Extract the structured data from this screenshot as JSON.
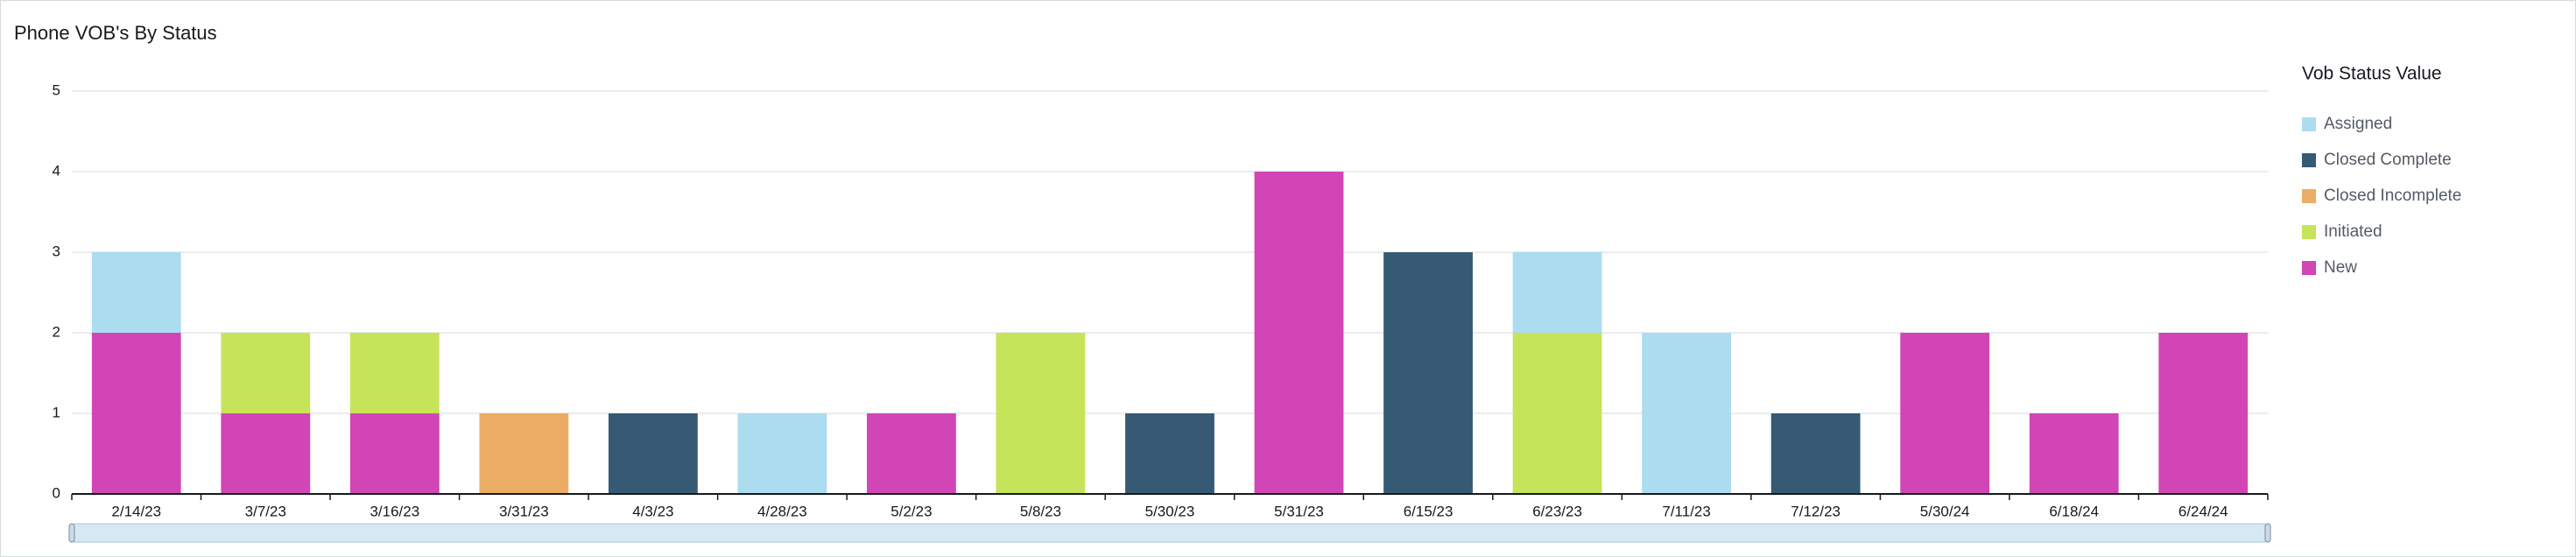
{
  "chart_data": {
    "type": "stacked_bar",
    "title": "Phone VOB's By Status",
    "legend_title": "Vob Status Value",
    "categories": [
      "2/14/23",
      "3/7/23",
      "3/16/23",
      "3/31/23",
      "4/3/23",
      "4/28/23",
      "5/2/23",
      "5/8/23",
      "5/30/23",
      "5/31/23",
      "6/15/23",
      "6/23/23",
      "7/11/23",
      "7/12/23",
      "5/30/24",
      "6/18/24",
      "6/24/24"
    ],
    "series": [
      {
        "name": "Assigned",
        "color": "#acdcf0",
        "values": [
          1,
          0,
          0,
          0,
          0,
          1,
          0,
          0,
          0,
          0,
          0,
          1,
          2,
          0,
          0,
          0,
          0
        ]
      },
      {
        "name": "Closed Complete",
        "color": "#365a74",
        "values": [
          0,
          0,
          0,
          0,
          1,
          0,
          0,
          0,
          1,
          0,
          3,
          0,
          0,
          1,
          0,
          0,
          0
        ]
      },
      {
        "name": "Closed Incomplete",
        "color": "#ebad66",
        "values": [
          0,
          0,
          0,
          1,
          0,
          0,
          0,
          0,
          0,
          0,
          0,
          0,
          0,
          0,
          0,
          0,
          0
        ]
      },
      {
        "name": "Initiated",
        "color": "#c5e45a",
        "values": [
          0,
          1,
          1,
          0,
          0,
          0,
          0,
          2,
          0,
          0,
          0,
          2,
          0,
          0,
          0,
          0,
          0
        ]
      },
      {
        "name": "New",
        "color": "#d145b6",
        "values": [
          2,
          1,
          1,
          0,
          0,
          0,
          1,
          0,
          0,
          4,
          0,
          0,
          0,
          0,
          2,
          1,
          2
        ]
      }
    ],
    "ylim": [
      0,
      5
    ],
    "yticks": [
      0,
      1,
      2,
      3,
      4,
      5
    ],
    "grid": true
  }
}
